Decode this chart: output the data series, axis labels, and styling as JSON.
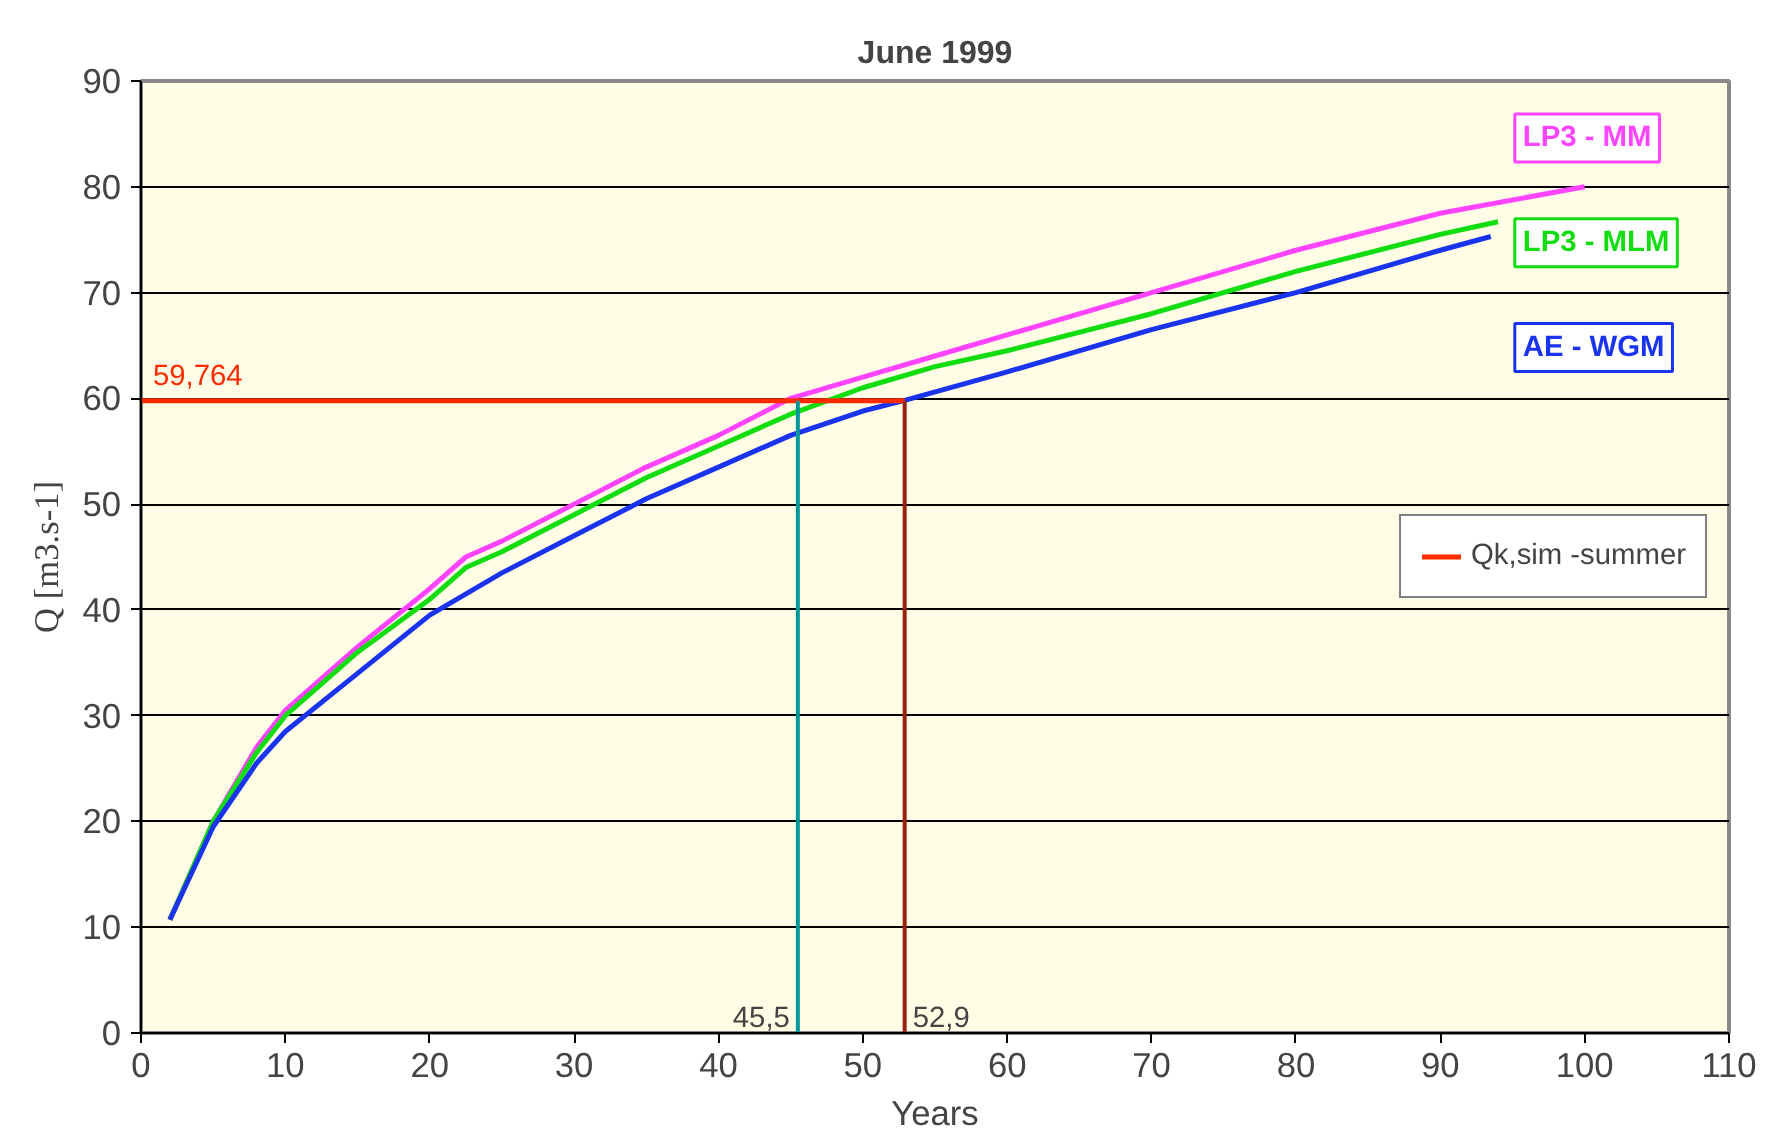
{
  "chart_data": {
    "type": "line",
    "title": "June 1999",
    "xlabel": "Years",
    "ylabel": "Q [m3.s-1]",
    "xlim": [
      0,
      110
    ],
    "xticks": [
      0,
      10,
      20,
      30,
      40,
      50,
      60,
      70,
      80,
      90,
      100,
      110
    ],
    "ylim": [
      0,
      90
    ],
    "yticks": [
      0,
      10,
      20,
      30,
      40,
      50,
      60,
      70,
      80,
      90
    ],
    "grid": "y",
    "legend": "right",
    "line_style": "solid",
    "series": [
      {
        "name": "LP3 - MM",
        "color": "#ff44ff",
        "x": [
          2,
          5,
          8,
          10,
          15,
          20,
          22.5,
          25,
          30,
          35,
          40,
          45,
          50,
          55,
          60,
          70,
          80,
          90,
          100
        ],
        "values": [
          10.7,
          20,
          27,
          30.5,
          36.5,
          42,
          45,
          46.5,
          50,
          53.5,
          56.5,
          60,
          62,
          64,
          66,
          70,
          74,
          77.5,
          80
        ]
      },
      {
        "name": "LP3 - MLM",
        "color": "#11dd11",
        "x": [
          2,
          5,
          8,
          10,
          15,
          20,
          22.5,
          25,
          30,
          35,
          40,
          45,
          50,
          55,
          60,
          70,
          80,
          90,
          94
        ],
        "values": [
          10.7,
          20,
          26.5,
          30,
          36,
          41,
          44,
          45.5,
          49,
          52.5,
          55.5,
          58.5,
          61,
          63,
          64.5,
          68,
          72,
          75.5,
          76.7
        ]
      },
      {
        "name": "AE - WGM",
        "color": "#1a33ee",
        "x": [
          2,
          5,
          8,
          10,
          15,
          20,
          25,
          30,
          35,
          40,
          45,
          50,
          52.9,
          60,
          70,
          80,
          90,
          93.5
        ],
        "values": [
          10.7,
          19.5,
          25.5,
          28.5,
          34,
          39.5,
          43.5,
          47,
          50.5,
          53.5,
          56.5,
          58.8,
          59.8,
          62.5,
          66.5,
          70,
          74,
          75.3
        ]
      }
    ],
    "ref_lines": [
      {
        "axis": "y",
        "value": 59.764,
        "label": "Qk,sim -summer",
        "color": "#ff2a00"
      },
      {
        "axis": "x",
        "value": 45.5,
        "label": "45,5",
        "color": "#009999"
      },
      {
        "axis": "x",
        "value": 52.9,
        "label": "52,9",
        "color": "#992211"
      }
    ],
    "annotations": [
      {
        "text": "59,764",
        "x": 0,
        "y": 59.764
      }
    ]
  }
}
